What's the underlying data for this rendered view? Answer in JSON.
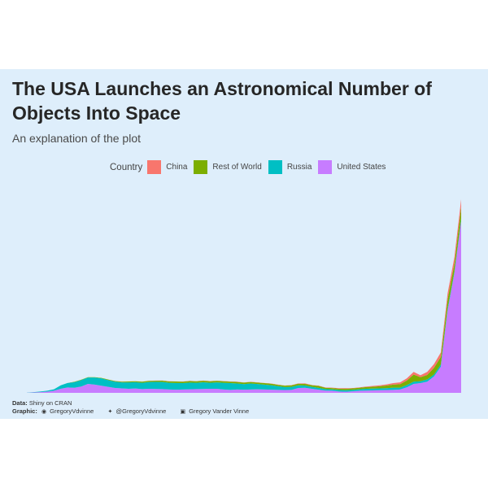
{
  "title": "The USA Launches an Astronomical Number of Objects Into Space",
  "subtitle": "An explanation of the plot",
  "legend": {
    "title": "Country",
    "items": [
      {
        "label": "China",
        "color": "#f8766d"
      },
      {
        "label": "Rest of World",
        "color": "#7cae00"
      },
      {
        "label": "Russia",
        "color": "#00bfc4"
      },
      {
        "label": "United States",
        "color": "#c77cff"
      }
    ]
  },
  "caption": {
    "data_label": "Data:",
    "data_text": "Shiny on CRAN",
    "graphic_label": "Graphic:",
    "github": "GregoryVdvinne",
    "twitter": "@GregoryVdvinne",
    "linkedin": "Gregory Vander Vinne"
  },
  "icons": [
    "github-icon",
    "twitter-icon",
    "linkedin-icon"
  ],
  "chart_data": {
    "type": "area",
    "stacked": true,
    "grid": false,
    "axes_visible": false,
    "x": [
      1957,
      1958,
      1959,
      1960,
      1961,
      1962,
      1963,
      1964,
      1965,
      1966,
      1967,
      1968,
      1969,
      1970,
      1971,
      1972,
      1973,
      1974,
      1975,
      1976,
      1977,
      1978,
      1979,
      1980,
      1981,
      1982,
      1983,
      1984,
      1985,
      1986,
      1987,
      1988,
      1989,
      1990,
      1991,
      1992,
      1993,
      1994,
      1995,
      1996,
      1997,
      1998,
      1999,
      2000,
      2001,
      2002,
      2003,
      2004,
      2005,
      2006,
      2007,
      2008,
      2009,
      2010,
      2011,
      2012,
      2013,
      2014,
      2015,
      2016,
      2017,
      2018,
      2019,
      2020,
      2021
    ],
    "series": [
      {
        "name": "United States",
        "color": "#c77cff",
        "values": [
          1,
          5,
          10,
          16,
          28,
          55,
          72,
          68,
          85,
          120,
          110,
          95,
          80,
          65,
          60,
          55,
          58,
          50,
          55,
          52,
          50,
          45,
          42,
          45,
          48,
          50,
          52,
          55,
          55,
          45,
          40,
          45,
          42,
          45,
          48,
          45,
          42,
          40,
          38,
          40,
          65,
          68,
          55,
          42,
          30,
          28,
          18,
          15,
          20,
          28,
          30,
          32,
          35,
          38,
          40,
          45,
          75,
          120,
          130,
          150,
          220,
          350,
          1100,
          1600,
          2300
        ]
      },
      {
        "name": "Russia",
        "color": "#00bfc4",
        "values": [
          2,
          5,
          8,
          12,
          20,
          45,
          60,
          75,
          85,
          85,
          95,
          100,
          90,
          85,
          80,
          85,
          85,
          85,
          90,
          95,
          95,
          90,
          90,
          85,
          90,
          85,
          90,
          80,
          85,
          90,
          90,
          80,
          75,
          80,
          70,
          65,
          60,
          50,
          40,
          40,
          35,
          30,
          25,
          25,
          20,
          18,
          20,
          20,
          20,
          20,
          25,
          25,
          25,
          25,
          30,
          25,
          30,
          30,
          25,
          30,
          25,
          30,
          30,
          25,
          30
        ]
      },
      {
        "name": "Rest of World",
        "color": "#7cae00",
        "values": [
          0,
          0,
          0,
          0,
          0,
          0,
          0,
          5,
          5,
          5,
          5,
          5,
          8,
          8,
          10,
          12,
          12,
          15,
          15,
          15,
          18,
          18,
          20,
          20,
          20,
          20,
          20,
          20,
          20,
          20,
          20,
          20,
          20,
          20,
          20,
          20,
          20,
          18,
          18,
          20,
          22,
          22,
          22,
          25,
          18,
          18,
          18,
          20,
          20,
          20,
          22,
          25,
          28,
          35,
          40,
          45,
          60,
          95,
          55,
          60,
          90,
          100,
          120,
          100,
          160
        ]
      },
      {
        "name": "China",
        "color": "#f8766d",
        "values": [
          0,
          0,
          0,
          0,
          0,
          0,
          0,
          0,
          0,
          0,
          0,
          0,
          0,
          1,
          1,
          0,
          0,
          0,
          2,
          3,
          1,
          2,
          1,
          2,
          2,
          1,
          2,
          3,
          2,
          3,
          3,
          4,
          2,
          3,
          2,
          2,
          3,
          2,
          2,
          3,
          5,
          6,
          3,
          5,
          4,
          5,
          6,
          7,
          4,
          5,
          8,
          10,
          12,
          15,
          20,
          25,
          30,
          35,
          25,
          40,
          50,
          60,
          80,
          90,
          100
        ]
      }
    ]
  }
}
